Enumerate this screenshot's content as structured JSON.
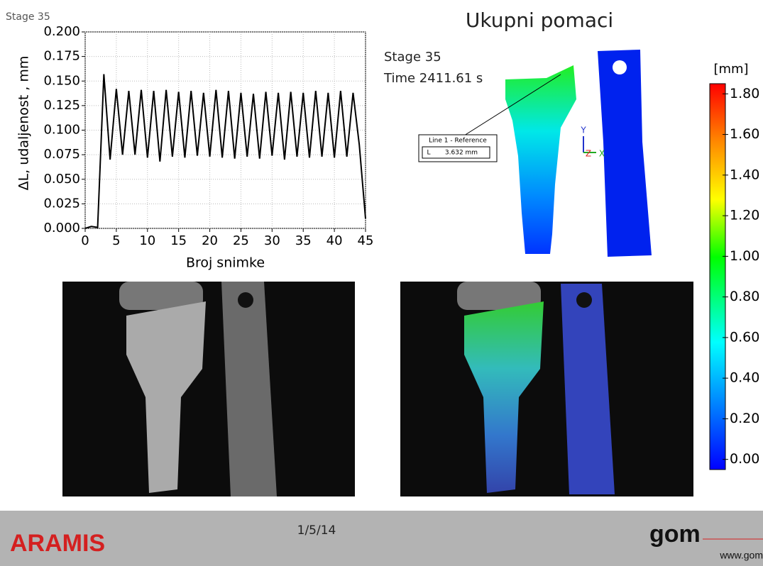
{
  "stage_label": "Stage 35",
  "chart_data": {
    "type": "line",
    "xlabel": "Broj snimke",
    "ylabel": "ΔL, udaljenost , mm",
    "x": [
      0,
      1,
      2,
      3,
      4,
      5,
      6,
      7,
      8,
      9,
      10,
      11,
      12,
      13,
      14,
      15,
      16,
      17,
      18,
      19,
      20,
      21,
      22,
      23,
      24,
      25,
      26,
      27,
      28,
      29,
      30,
      31,
      32,
      33,
      34,
      35,
      36,
      37,
      38,
      39,
      40,
      41,
      42,
      43,
      44,
      45
    ],
    "series": [
      {
        "color": "#000000",
        "values": [
          0.0,
          0.002,
          0.001,
          0.157,
          0.07,
          0.142,
          0.075,
          0.14,
          0.075,
          0.141,
          0.072,
          0.14,
          0.068,
          0.141,
          0.073,
          0.139,
          0.072,
          0.14,
          0.074,
          0.138,
          0.073,
          0.141,
          0.072,
          0.14,
          0.071,
          0.138,
          0.073,
          0.137,
          0.071,
          0.139,
          0.074,
          0.138,
          0.07,
          0.139,
          0.073,
          0.138,
          0.072,
          0.14,
          0.073,
          0.138,
          0.072,
          0.14,
          0.073,
          0.138,
          0.085,
          0.01
        ]
      }
    ],
    "xlim": [
      0,
      45
    ],
    "xticks": [
      0,
      5,
      10,
      15,
      20,
      25,
      30,
      35,
      40,
      45
    ],
    "ylim": [
      0,
      0.2
    ],
    "yticks": [
      {
        "value": 0,
        "label": "0.000"
      },
      {
        "value": 0.025,
        "label": "0.025"
      },
      {
        "value": 0.05,
        "label": "0.050"
      },
      {
        "value": 0.075,
        "label": "0.075"
      },
      {
        "value": 0.1,
        "label": "0.100"
      },
      {
        "value": 0.125,
        "label": "0.125"
      },
      {
        "value": 0.15,
        "label": "0.150"
      },
      {
        "value": 0.175,
        "label": "0.175"
      },
      {
        "value": 0.2,
        "label": "0.200"
      }
    ],
    "grid": true
  },
  "view": {
    "title": "Ukupni pomaci",
    "stage": "Stage 35",
    "time": "Time  2411.61 s",
    "annotation": {
      "title": "Line 1 - Reference",
      "symbol": "L",
      "value": "3.632 mm"
    },
    "axes": {
      "y": "Y",
      "z": "Z",
      "x": "X"
    }
  },
  "colorbar": {
    "unit": "[mm]",
    "lim": [
      -0.05,
      1.85
    ],
    "ticks": [
      {
        "value": 0,
        "label": "0.00"
      },
      {
        "value": 0.2,
        "label": "0.20"
      },
      {
        "value": 0.4,
        "label": "0.40"
      },
      {
        "value": 0.6,
        "label": "0.60"
      },
      {
        "value": 0.8,
        "label": "0.80"
      },
      {
        "value": 1.0,
        "label": "1.00"
      },
      {
        "value": 1.2,
        "label": "1.20"
      },
      {
        "value": 1.4,
        "label": "1.40"
      },
      {
        "value": 1.6,
        "label": "1.60"
      },
      {
        "value": 1.8,
        "label": "1.80"
      }
    ]
  },
  "footer": {
    "brand": "ARAMIS",
    "date": "1/5/14",
    "logo": "gom",
    "url": "www.gom"
  }
}
